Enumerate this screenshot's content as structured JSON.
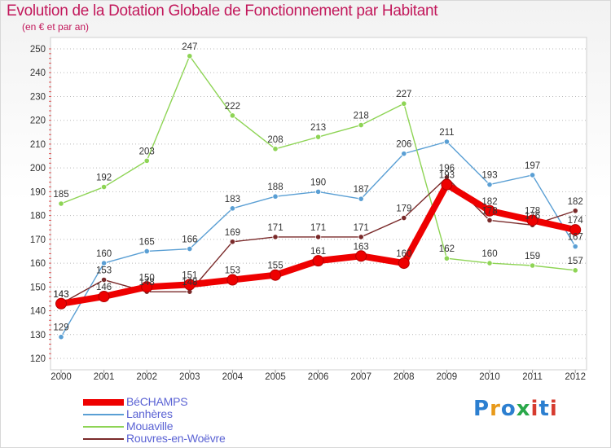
{
  "header": {
    "title": "Evolution de la Dotation Globale de Fonctionnement par Habitant",
    "subtitle": "(en € et par an)"
  },
  "logo": {
    "text": "Proxiti"
  },
  "chart_data": {
    "type": "line",
    "categories": [
      "2000",
      "2001",
      "2002",
      "2003",
      "2004",
      "2005",
      "2006",
      "2007",
      "2008",
      "2009",
      "2010",
      "2011",
      "2012"
    ],
    "yticks": [
      120,
      130,
      140,
      150,
      160,
      170,
      180,
      190,
      200,
      210,
      220,
      230,
      240,
      250
    ],
    "ylim": [
      120,
      250
    ],
    "grid": "horizontal dotted",
    "legend_position": "bottom-left",
    "series": [
      {
        "name": "Lanhères",
        "color": "#5a9fd4",
        "values": [
          129,
          160,
          165,
          166,
          183,
          188,
          190,
          187,
          206,
          211,
          193,
          197,
          167
        ]
      },
      {
        "name": "Mouaville",
        "color": "#8ed455",
        "values": [
          185,
          192,
          203,
          247,
          222,
          208,
          213,
          218,
          227,
          162,
          160,
          159,
          157
        ]
      },
      {
        "name": "Rouvres-en-Woëvre",
        "color": "#7a2a2a",
        "values": [
          143,
          153,
          148,
          148,
          169,
          171,
          171,
          171,
          179,
          196,
          178,
          176,
          182
        ]
      },
      {
        "name": "BéCHAMPS",
        "color": "#ee0000",
        "values": [
          143,
          146,
          150,
          151,
          153,
          155,
          161,
          163,
          160,
          193,
          182,
          178,
          174
        ]
      }
    ],
    "legend": [
      {
        "name": "BéCHAMPS",
        "color": "#ee0000"
      },
      {
        "name": "Lanhères",
        "color": "#5a9fd4"
      },
      {
        "name": "Mouaville",
        "color": "#8ed455"
      },
      {
        "name": "Rouvres-en-Woëvre",
        "color": "#7a2a2a"
      }
    ]
  }
}
